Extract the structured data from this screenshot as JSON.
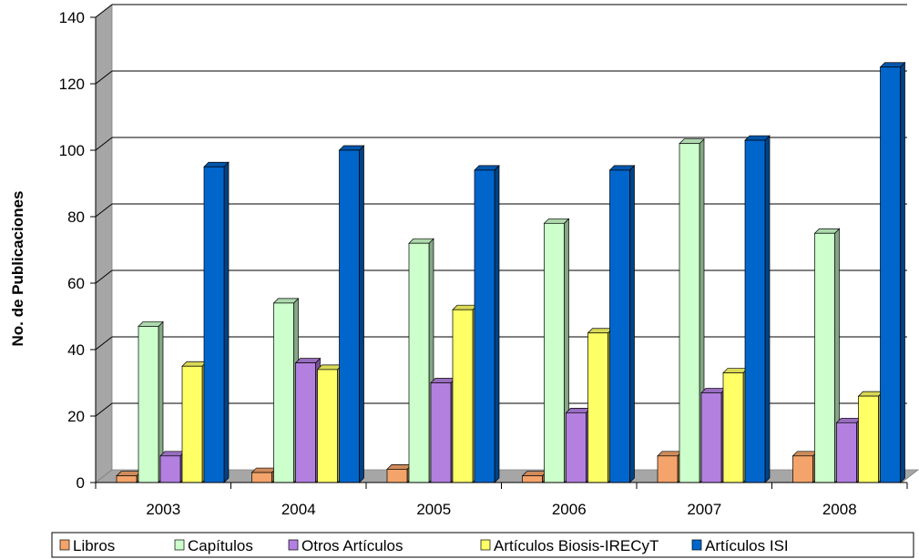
{
  "chart_data": {
    "type": "bar",
    "title": "",
    "xlabel": "",
    "ylabel": "No. de Publicaciones",
    "ylim": [
      0,
      140
    ],
    "yticks": [
      0,
      20,
      40,
      60,
      80,
      100,
      120,
      140
    ],
    "categories": [
      "2003",
      "2004",
      "2005",
      "2006",
      "2007",
      "2008"
    ],
    "series": [
      {
        "name": "Libros",
        "color": "#f4a46a",
        "values": [
          2,
          3,
          4,
          2,
          8,
          8
        ]
      },
      {
        "name": "Capítulos",
        "color": "#ccffcc",
        "values": [
          47,
          54,
          72,
          78,
          102,
          75
        ]
      },
      {
        "name": "Otros Artículos",
        "color": "#b380e0",
        "values": [
          8,
          36,
          30,
          21,
          27,
          18
        ]
      },
      {
        "name": "Artículos Biosis-IRECyT",
        "color": "#ffff66",
        "values": [
          35,
          34,
          52,
          45,
          33,
          26
        ]
      },
      {
        "name": "Artículos ISI",
        "color": "#0066cc",
        "values": [
          95,
          100,
          94,
          94,
          103,
          125
        ]
      }
    ],
    "grid": true,
    "legend_position": "bottom",
    "style": "3d-clustered-column"
  }
}
